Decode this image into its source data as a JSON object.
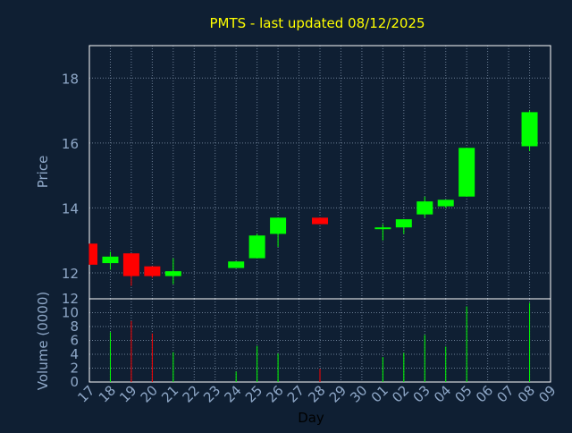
{
  "title": "PMTS - last updated 08/12/2025",
  "colors": {
    "background": "#0f1f33",
    "title": "#ffff00",
    "axis_text": "#8fa8c8",
    "grid": "#6a7c93",
    "frame": "#ffffff",
    "up": "#00ff00",
    "down": "#ff0000",
    "xlabel": "#000000"
  },
  "chart_data": [
    {
      "type": "candlestick",
      "title": "PMTS - last updated 08/12/2025",
      "ylabel": "Price",
      "ylim": [
        11.2,
        19.0
      ],
      "yticks": [
        12,
        14,
        16,
        18
      ],
      "grid": true,
      "x_tick_labels": [
        "17",
        "18",
        "19",
        "20",
        "21",
        "22",
        "23",
        "24",
        "25",
        "26",
        "27",
        "28",
        "29",
        "30",
        "01",
        "02",
        "03",
        "04",
        "05",
        "06",
        "07",
        "08",
        "09"
      ],
      "candles": [
        {
          "day": "17",
          "open": 12.9,
          "close": 12.25,
          "high": 12.9,
          "low": 12.25,
          "direction": "down"
        },
        {
          "day": "18",
          "open": 12.3,
          "close": 12.5,
          "high": 12.65,
          "low": 12.1,
          "direction": "up"
        },
        {
          "day": "19",
          "open": 12.6,
          "close": 11.9,
          "high": 12.6,
          "low": 11.6,
          "direction": "down"
        },
        {
          "day": "20",
          "open": 12.2,
          "close": 11.9,
          "high": 12.2,
          "low": 11.85,
          "direction": "down"
        },
        {
          "day": "21",
          "open": 11.9,
          "close": 12.05,
          "high": 12.45,
          "low": 11.65,
          "direction": "up"
        },
        {
          "day": "24",
          "open": 12.15,
          "close": 12.35,
          "high": 12.35,
          "low": 12.15,
          "direction": "up"
        },
        {
          "day": "25",
          "open": 12.45,
          "close": 13.15,
          "high": 13.2,
          "low": 12.45,
          "direction": "up"
        },
        {
          "day": "26",
          "open": 13.2,
          "close": 13.7,
          "high": 13.7,
          "low": 12.8,
          "direction": "up"
        },
        {
          "day": "28",
          "open": 13.7,
          "close": 13.5,
          "high": 13.7,
          "low": 13.5,
          "direction": "down"
        },
        {
          "day": "01",
          "open": 13.35,
          "close": 13.4,
          "high": 13.5,
          "low": 13.0,
          "direction": "up"
        },
        {
          "day": "02",
          "open": 13.4,
          "close": 13.65,
          "high": 13.65,
          "low": 13.2,
          "direction": "up"
        },
        {
          "day": "03",
          "open": 13.8,
          "close": 14.2,
          "high": 14.35,
          "low": 13.7,
          "direction": "up"
        },
        {
          "day": "04",
          "open": 14.05,
          "close": 14.25,
          "high": 14.25,
          "low": 14.0,
          "direction": "up"
        },
        {
          "day": "05",
          "open": 14.35,
          "close": 15.85,
          "high": 15.85,
          "low": 14.35,
          "direction": "up"
        },
        {
          "day": "08",
          "open": 15.9,
          "close": 16.95,
          "high": 17.0,
          "low": 15.75,
          "direction": "up"
        }
      ]
    },
    {
      "type": "bar",
      "ylabel": "Volume (0000)",
      "xlabel": "Day",
      "ylim": [
        0,
        12
      ],
      "yticks": [
        0,
        2,
        4,
        6,
        8,
        10,
        12
      ],
      "grid": true,
      "x_tick_labels": [
        "17",
        "18",
        "19",
        "20",
        "21",
        "22",
        "23",
        "24",
        "25",
        "26",
        "27",
        "28",
        "29",
        "30",
        "01",
        "02",
        "03",
        "04",
        "05",
        "06",
        "07",
        "08",
        "09"
      ],
      "bars": [
        {
          "day": "18",
          "value": 7.2,
          "direction": "up"
        },
        {
          "day": "19",
          "value": 8.8,
          "direction": "down"
        },
        {
          "day": "20",
          "value": 7.0,
          "direction": "down"
        },
        {
          "day": "21",
          "value": 4.3,
          "direction": "up"
        },
        {
          "day": "24",
          "value": 1.5,
          "direction": "up"
        },
        {
          "day": "25",
          "value": 5.2,
          "direction": "up"
        },
        {
          "day": "26",
          "value": 4.1,
          "direction": "up"
        },
        {
          "day": "28",
          "value": 1.9,
          "direction": "down"
        },
        {
          "day": "01",
          "value": 3.6,
          "direction": "up"
        },
        {
          "day": "02",
          "value": 4.2,
          "direction": "up"
        },
        {
          "day": "03",
          "value": 6.8,
          "direction": "up"
        },
        {
          "day": "04",
          "value": 5.1,
          "direction": "up"
        },
        {
          "day": "05",
          "value": 10.9,
          "direction": "up"
        },
        {
          "day": "08",
          "value": 11.4,
          "direction": "up"
        }
      ]
    }
  ]
}
